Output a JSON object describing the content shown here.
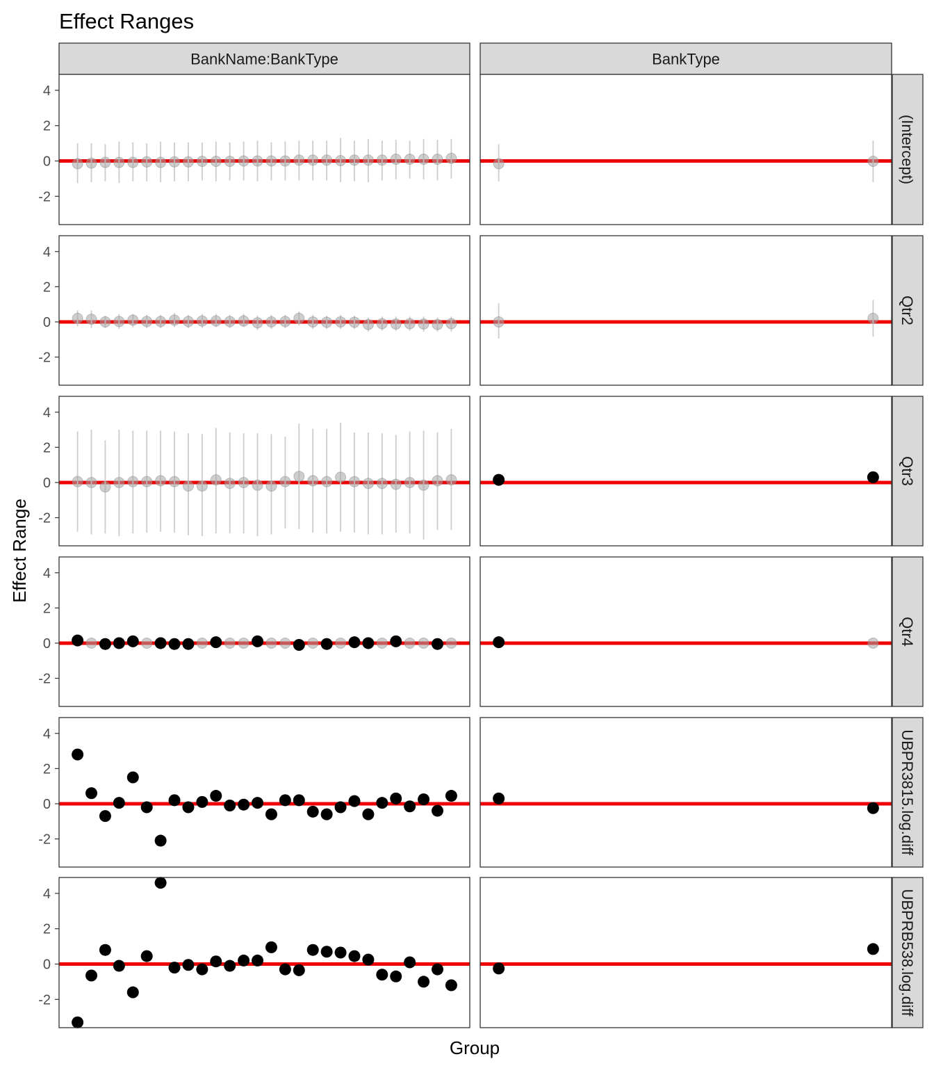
{
  "chart_data": {
    "type": "scatter",
    "subtype": "faceted-pointrange",
    "title": "Effect Ranges",
    "xlabel": "Group",
    "ylabel": "Effect Range",
    "ylim": [
      -3.6,
      4.9
    ],
    "yticks": [
      -2,
      0,
      2,
      4
    ],
    "grid": false,
    "reference_line": {
      "y": 0,
      "color": "#ee0000"
    },
    "colors": {
      "significant": "#000000",
      "not_significant": "#a6a6a6",
      "interval": "#cccccc",
      "strip_fill": "#d9d9d9",
      "panel_border": "#333333"
    },
    "col_facets": [
      "BankName:BankType",
      "BankType"
    ],
    "row_facets": [
      "(Intercept)",
      "Qtr2",
      "Qtr3",
      "Qtr4",
      "UBPR3815.log.diff",
      "UBPRB538.log.diff"
    ],
    "panels": [
      {
        "col": "BankName:BankType",
        "row": "(Intercept)",
        "points": [
          {
            "y": -0.15,
            "lo": -1.25,
            "hi": 1.0,
            "sig": false
          },
          {
            "y": -0.12,
            "lo": -1.2,
            "hi": 1.0,
            "sig": false
          },
          {
            "y": -0.08,
            "lo": -1.15,
            "hi": 0.95,
            "sig": false
          },
          {
            "y": -0.08,
            "lo": -1.25,
            "hi": 1.1,
            "sig": false
          },
          {
            "y": -0.08,
            "lo": -1.15,
            "hi": 1.05,
            "sig": false
          },
          {
            "y": -0.05,
            "lo": -1.15,
            "hi": 1.0,
            "sig": false
          },
          {
            "y": -0.08,
            "lo": -1.2,
            "hi": 1.1,
            "sig": false
          },
          {
            "y": -0.05,
            "lo": -1.15,
            "hi": 1.05,
            "sig": false
          },
          {
            "y": -0.05,
            "lo": -1.15,
            "hi": 1.05,
            "sig": false
          },
          {
            "y": -0.02,
            "lo": -1.1,
            "hi": 1.05,
            "sig": false
          },
          {
            "y": -0.02,
            "lo": -1.15,
            "hi": 1.1,
            "sig": false
          },
          {
            "y": -0.02,
            "lo": -1.1,
            "hi": 1.05,
            "sig": false
          },
          {
            "y": 0.0,
            "lo": -1.1,
            "hi": 1.1,
            "sig": false
          },
          {
            "y": 0.0,
            "lo": -1.15,
            "hi": 1.15,
            "sig": false
          },
          {
            "y": 0.0,
            "lo": -1.1,
            "hi": 1.05,
            "sig": false
          },
          {
            "y": 0.0,
            "lo": -1.1,
            "hi": 1.1,
            "sig": false
          },
          {
            "y": 0.05,
            "lo": -1.1,
            "hi": 1.15,
            "sig": false
          },
          {
            "y": 0.05,
            "lo": -1.1,
            "hi": 1.15,
            "sig": false
          },
          {
            "y": 0.05,
            "lo": -1.1,
            "hi": 1.15,
            "sig": false
          },
          {
            "y": 0.02,
            "lo": -1.2,
            "hi": 1.3,
            "sig": false
          },
          {
            "y": 0.05,
            "lo": -1.15,
            "hi": 1.15,
            "sig": false
          },
          {
            "y": 0.05,
            "lo": -1.2,
            "hi": 1.25,
            "sig": false
          },
          {
            "y": 0.05,
            "lo": -1.1,
            "hi": 1.15,
            "sig": false
          },
          {
            "y": 0.1,
            "lo": -1.05,
            "hi": 1.2,
            "sig": false
          },
          {
            "y": 0.1,
            "lo": -1.0,
            "hi": 1.15,
            "sig": false
          },
          {
            "y": 0.1,
            "lo": -1.05,
            "hi": 1.25,
            "sig": false
          },
          {
            "y": 0.1,
            "lo": -1.1,
            "hi": 1.2,
            "sig": false
          },
          {
            "y": 0.15,
            "lo": -1.0,
            "hi": 1.25,
            "sig": false
          }
        ]
      },
      {
        "col": "BankType",
        "row": "(Intercept)",
        "points": [
          {
            "y": -0.15,
            "lo": -1.15,
            "hi": 0.95,
            "sig": false
          },
          {
            "y": -0.02,
            "lo": -1.2,
            "hi": 1.15,
            "sig": false
          }
        ]
      },
      {
        "col": "BankName:BankType",
        "row": "Qtr2",
        "points": [
          {
            "y": 0.2,
            "lo": -0.25,
            "hi": 0.65,
            "sig": false
          },
          {
            "y": 0.15,
            "lo": -0.35,
            "hi": 0.65,
            "sig": false
          },
          {
            "y": 0.0,
            "lo": -0.35,
            "hi": 0.35,
            "sig": false
          },
          {
            "y": 0.02,
            "lo": -0.4,
            "hi": 0.45,
            "sig": false
          },
          {
            "y": 0.1,
            "lo": -0.3,
            "hi": 0.45,
            "sig": false
          },
          {
            "y": 0.02,
            "lo": -0.35,
            "hi": 0.4,
            "sig": false
          },
          {
            "y": 0.02,
            "lo": -0.35,
            "hi": 0.4,
            "sig": false
          },
          {
            "y": 0.1,
            "lo": -0.3,
            "hi": 0.5,
            "sig": false
          },
          {
            "y": 0.02,
            "lo": -0.35,
            "hi": 0.4,
            "sig": false
          },
          {
            "y": 0.05,
            "lo": -0.35,
            "hi": 0.45,
            "sig": false
          },
          {
            "y": 0.05,
            "lo": -0.3,
            "hi": 0.45,
            "sig": false
          },
          {
            "y": 0.02,
            "lo": -0.35,
            "hi": 0.4,
            "sig": false
          },
          {
            "y": 0.05,
            "lo": -0.3,
            "hi": 0.45,
            "sig": false
          },
          {
            "y": -0.05,
            "lo": -0.45,
            "hi": 0.35,
            "sig": false
          },
          {
            "y": 0.0,
            "lo": -0.4,
            "hi": 0.4,
            "sig": false
          },
          {
            "y": 0.02,
            "lo": -0.35,
            "hi": 0.4,
            "sig": false
          },
          {
            "y": 0.2,
            "lo": -0.2,
            "hi": 0.6,
            "sig": false
          },
          {
            "y": 0.0,
            "lo": -0.4,
            "hi": 0.4,
            "sig": false
          },
          {
            "y": -0.02,
            "lo": -0.4,
            "hi": 0.35,
            "sig": false
          },
          {
            "y": 0.0,
            "lo": -0.4,
            "hi": 0.4,
            "sig": false
          },
          {
            "y": -0.02,
            "lo": -0.4,
            "hi": 0.35,
            "sig": false
          },
          {
            "y": -0.15,
            "lo": -0.55,
            "hi": 0.25,
            "sig": false
          },
          {
            "y": -0.1,
            "lo": -0.5,
            "hi": 0.3,
            "sig": false
          },
          {
            "y": -0.12,
            "lo": -0.5,
            "hi": 0.3,
            "sig": false
          },
          {
            "y": -0.1,
            "lo": -0.5,
            "hi": 0.3,
            "sig": false
          },
          {
            "y": -0.12,
            "lo": -0.55,
            "hi": 0.3,
            "sig": false
          },
          {
            "y": -0.15,
            "lo": -0.55,
            "hi": 0.25,
            "sig": false
          },
          {
            "y": -0.1,
            "lo": -0.55,
            "hi": 0.3,
            "sig": false
          }
        ]
      },
      {
        "col": "BankType",
        "row": "Qtr2",
        "points": [
          {
            "y": 0.0,
            "lo": -0.95,
            "hi": 1.05,
            "sig": false
          },
          {
            "y": 0.2,
            "lo": -0.85,
            "hi": 1.25,
            "sig": false
          }
        ]
      },
      {
        "col": "BankName:BankType",
        "row": "Qtr3",
        "points": [
          {
            "y": 0.05,
            "lo": -2.8,
            "hi": 2.9,
            "sig": false
          },
          {
            "y": 0.0,
            "lo": -2.95,
            "hi": 3.0,
            "sig": false
          },
          {
            "y": -0.25,
            "lo": -2.9,
            "hi": 2.4,
            "sig": false
          },
          {
            "y": 0.0,
            "lo": -3.05,
            "hi": 3.0,
            "sig": false
          },
          {
            "y": 0.05,
            "lo": -2.9,
            "hi": 2.95,
            "sig": false
          },
          {
            "y": 0.05,
            "lo": -2.85,
            "hi": 2.95,
            "sig": false
          },
          {
            "y": 0.1,
            "lo": -2.8,
            "hi": 2.95,
            "sig": false
          },
          {
            "y": 0.05,
            "lo": -2.85,
            "hi": 2.9,
            "sig": false
          },
          {
            "y": -0.2,
            "lo": -3.0,
            "hi": 2.8,
            "sig": false
          },
          {
            "y": -0.2,
            "lo": -3.05,
            "hi": 2.75,
            "sig": false
          },
          {
            "y": 0.15,
            "lo": -2.9,
            "hi": 3.1,
            "sig": false
          },
          {
            "y": -0.05,
            "lo": -2.9,
            "hi": 2.85,
            "sig": false
          },
          {
            "y": 0.0,
            "lo": -2.9,
            "hi": 2.8,
            "sig": false
          },
          {
            "y": -0.15,
            "lo": -3.05,
            "hi": 2.8,
            "sig": false
          },
          {
            "y": -0.2,
            "lo": -2.95,
            "hi": 2.75,
            "sig": false
          },
          {
            "y": 0.05,
            "lo": -2.6,
            "hi": 2.6,
            "sig": false
          },
          {
            "y": 0.35,
            "lo": -2.65,
            "hi": 3.35,
            "sig": false
          },
          {
            "y": 0.1,
            "lo": -2.85,
            "hi": 3.05,
            "sig": false
          },
          {
            "y": 0.05,
            "lo": -2.9,
            "hi": 3.05,
            "sig": false
          },
          {
            "y": 0.3,
            "lo": -2.8,
            "hi": 3.4,
            "sig": false
          },
          {
            "y": 0.05,
            "lo": -2.85,
            "hi": 2.85,
            "sig": false
          },
          {
            "y": -0.05,
            "lo": -2.95,
            "hi": 2.85,
            "sig": false
          },
          {
            "y": -0.05,
            "lo": -2.95,
            "hi": 2.8,
            "sig": false
          },
          {
            "y": -0.1,
            "lo": -2.85,
            "hi": 2.7,
            "sig": false
          },
          {
            "y": 0.0,
            "lo": -2.9,
            "hi": 2.9,
            "sig": false
          },
          {
            "y": -0.15,
            "lo": -3.25,
            "hi": 2.95,
            "sig": false
          },
          {
            "y": 0.1,
            "lo": -2.7,
            "hi": 2.85,
            "sig": false
          },
          {
            "y": 0.15,
            "lo": -2.7,
            "hi": 3.05,
            "sig": false
          }
        ]
      },
      {
        "col": "BankType",
        "row": "Qtr3",
        "points": [
          {
            "y": 0.15,
            "sig": true
          },
          {
            "y": 0.3,
            "sig": true
          }
        ]
      },
      {
        "col": "BankName:BankType",
        "row": "Qtr4",
        "points": [
          {
            "y": 0.15,
            "sig": true
          },
          {
            "y": 0.0,
            "sig": false
          },
          {
            "y": -0.05,
            "sig": true
          },
          {
            "y": 0.0,
            "sig": true
          },
          {
            "y": 0.1,
            "sig": true
          },
          {
            "y": 0.0,
            "sig": false
          },
          {
            "y": 0.0,
            "sig": true
          },
          {
            "y": -0.05,
            "sig": true
          },
          {
            "y": -0.05,
            "sig": true
          },
          {
            "y": 0.0,
            "sig": false
          },
          {
            "y": 0.05,
            "sig": true
          },
          {
            "y": 0.0,
            "sig": false
          },
          {
            "y": 0.0,
            "sig": false
          },
          {
            "y": 0.1,
            "sig": true
          },
          {
            "y": 0.0,
            "sig": false
          },
          {
            "y": 0.0,
            "sig": false
          },
          {
            "y": -0.1,
            "sig": true
          },
          {
            "y": 0.0,
            "sig": false
          },
          {
            "y": -0.05,
            "sig": true
          },
          {
            "y": 0.0,
            "sig": false
          },
          {
            "y": 0.05,
            "sig": true
          },
          {
            "y": 0.0,
            "sig": true
          },
          {
            "y": 0.0,
            "sig": false
          },
          {
            "y": 0.1,
            "sig": true
          },
          {
            "y": 0.0,
            "sig": false
          },
          {
            "y": 0.0,
            "sig": false
          },
          {
            "y": -0.05,
            "sig": true
          },
          {
            "y": 0.0,
            "sig": false
          }
        ]
      },
      {
        "col": "BankType",
        "row": "Qtr4",
        "points": [
          {
            "y": 0.05,
            "sig": true
          },
          {
            "y": 0.0,
            "sig": false
          }
        ]
      },
      {
        "col": "BankName:BankType",
        "row": "UBPR3815.log.diff",
        "points": [
          {
            "y": 2.8,
            "sig": true
          },
          {
            "y": 0.6,
            "sig": true
          },
          {
            "y": -0.7,
            "sig": true
          },
          {
            "y": 0.05,
            "sig": true
          },
          {
            "y": 1.5,
            "sig": true
          },
          {
            "y": -0.2,
            "sig": true
          },
          {
            "y": -2.1,
            "sig": true
          },
          {
            "y": 0.2,
            "sig": true
          },
          {
            "y": -0.2,
            "sig": true
          },
          {
            "y": 0.1,
            "sig": true
          },
          {
            "y": 0.45,
            "sig": true
          },
          {
            "y": -0.1,
            "sig": true
          },
          {
            "y": -0.05,
            "sig": true
          },
          {
            "y": 0.05,
            "sig": true
          },
          {
            "y": -0.6,
            "sig": true
          },
          {
            "y": 0.2,
            "sig": true
          },
          {
            "y": 0.2,
            "sig": true
          },
          {
            "y": -0.45,
            "sig": true
          },
          {
            "y": -0.6,
            "sig": true
          },
          {
            "y": -0.2,
            "sig": true
          },
          {
            "y": 0.15,
            "sig": true
          },
          {
            "y": -0.6,
            "sig": true
          },
          {
            "y": 0.05,
            "sig": true
          },
          {
            "y": 0.3,
            "sig": true
          },
          {
            "y": -0.15,
            "sig": true
          },
          {
            "y": 0.25,
            "sig": true
          },
          {
            "y": -0.4,
            "sig": true
          },
          {
            "y": 0.45,
            "sig": true
          }
        ]
      },
      {
        "col": "BankType",
        "row": "UBPR3815.log.diff",
        "points": [
          {
            "y": 0.3,
            "sig": true
          },
          {
            "y": -0.25,
            "sig": true
          }
        ]
      },
      {
        "col": "BankName:BankType",
        "row": "UBPRB538.log.diff",
        "points": [
          {
            "y": -3.3,
            "sig": true
          },
          {
            "y": -0.65,
            "sig": true
          },
          {
            "y": 0.8,
            "sig": true
          },
          {
            "y": -0.1,
            "sig": true
          },
          {
            "y": -1.6,
            "sig": true
          },
          {
            "y": 0.45,
            "sig": true
          },
          {
            "y": 4.6,
            "sig": true
          },
          {
            "y": -0.2,
            "sig": true
          },
          {
            "y": -0.05,
            "sig": true
          },
          {
            "y": -0.3,
            "sig": true
          },
          {
            "y": 0.15,
            "sig": true
          },
          {
            "y": -0.1,
            "sig": true
          },
          {
            "y": 0.2,
            "sig": true
          },
          {
            "y": 0.2,
            "sig": true
          },
          {
            "y": 0.95,
            "sig": true
          },
          {
            "y": -0.3,
            "sig": true
          },
          {
            "y": -0.35,
            "sig": true
          },
          {
            "y": 0.8,
            "sig": true
          },
          {
            "y": 0.7,
            "sig": true
          },
          {
            "y": 0.65,
            "sig": true
          },
          {
            "y": 0.45,
            "sig": true
          },
          {
            "y": 0.25,
            "sig": true
          },
          {
            "y": -0.6,
            "sig": true
          },
          {
            "y": -0.7,
            "sig": true
          },
          {
            "y": 0.1,
            "sig": true
          },
          {
            "y": -1.0,
            "sig": true
          },
          {
            "y": -0.3,
            "sig": true
          },
          {
            "y": -1.2,
            "sig": true
          }
        ]
      },
      {
        "col": "BankType",
        "row": "UBPRB538.log.diff",
        "points": [
          {
            "y": -0.25,
            "sig": true
          },
          {
            "y": 0.85,
            "sig": true
          }
        ]
      }
    ]
  }
}
